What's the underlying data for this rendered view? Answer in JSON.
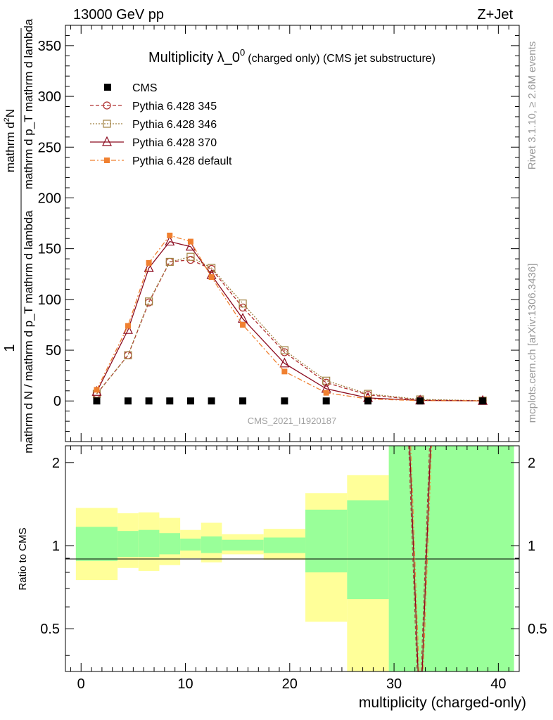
{
  "header": {
    "energy_label": "13000 GeV pp",
    "process_label": "Z+Jet"
  },
  "side_labels": {
    "rivet": "Rivet 3.1.10, ≥ 2.6M events",
    "mcplots": "mcplots.cern.ch [arXiv:1306.3436]"
  },
  "colors": {
    "cms": "#000000",
    "p345": "#b03030",
    "p346": "#a08040",
    "p370": "#8b0a1e",
    "pdefault": "#f08030",
    "band_inner": "#99ff99",
    "band_outer": "#ffff99"
  },
  "chart_data": [
    {
      "type": "line",
      "title": "Multiplicity λ_0",
      "title_superscript": "0",
      "title_suffix": "(charged only) (CMS jet substructure)",
      "ylabel_numerator": "1",
      "ylabel_main": "mathrm d N / mathrm d p_T mathrm d lambda",
      "ylabel_top": "mathrm d",
      "ylabel_top_sup": "2",
      "ylabel_top_tail": "N",
      "ylabel_denominator": "mathrm d p_T mathrm d lambda",
      "watermark": "CMS_2021_I1920187",
      "xlim": [
        -1.5,
        42
      ],
      "ylim": [
        -40,
        370
      ],
      "yticks": [
        0,
        50,
        100,
        150,
        200,
        250,
        300,
        350
      ],
      "x": [
        1.5,
        4.5,
        6.5,
        8.5,
        10.5,
        12.5,
        15.5,
        19.5,
        23.5,
        27.5,
        32.5,
        38.5
      ],
      "series": [
        {
          "name": "CMS",
          "marker": "filled-square",
          "values": [
            0,
            0,
            0,
            0,
            0,
            0,
            0,
            0,
            0,
            0,
            0,
            0
          ]
        },
        {
          "name": "Pythia 6.428 345",
          "marker": "open-circle",
          "dash": "5,3",
          "values": [
            7,
            45,
            97,
            137,
            139,
            130,
            92,
            48,
            18,
            6,
            1,
            0.2
          ]
        },
        {
          "name": "Pythia 6.428 346",
          "marker": "open-square",
          "dash": "2,2",
          "values": [
            7,
            45,
            98,
            137,
            142,
            131,
            96,
            50,
            20,
            7,
            1.5,
            0.3
          ]
        },
        {
          "name": "Pythia 6.428 370",
          "marker": "open-triangle",
          "dash": "",
          "values": [
            9,
            70,
            131,
            157,
            152,
            124,
            81,
            37,
            12,
            3,
            0.5,
            0.1
          ]
        },
        {
          "name": "Pythia 6.428 default",
          "marker": "filled-square-small",
          "dash": "7,3,2,3",
          "values": [
            11,
            74,
            136,
            163,
            157,
            122,
            75,
            29,
            8,
            2,
            0.3,
            0.05
          ]
        }
      ]
    },
    {
      "type": "area",
      "xlabel": "multiplicity (charged-only)",
      "ylabel": "Ratio to CMS",
      "xlim": [
        -1.5,
        42
      ],
      "ylim": [
        0.35,
        2.3
      ],
      "xticks": [
        0,
        10,
        20,
        30,
        40
      ],
      "yticks": [
        0.5,
        1,
        2
      ],
      "bins": [
        {
          "lo": -0.5,
          "hi": 3.5,
          "inner": [
            0.88,
            1.17
          ],
          "outer": [
            0.75,
            1.37
          ]
        },
        {
          "lo": 3.5,
          "hi": 5.5,
          "inner": [
            0.91,
            1.13
          ],
          "outer": [
            0.83,
            1.31
          ]
        },
        {
          "lo": 5.5,
          "hi": 7.5,
          "inner": [
            0.91,
            1.14
          ],
          "outer": [
            0.81,
            1.32
          ]
        },
        {
          "lo": 7.5,
          "hi": 9.5,
          "inner": [
            0.93,
            1.11
          ],
          "outer": [
            0.85,
            1.26
          ]
        },
        {
          "lo": 9.5,
          "hi": 11.5,
          "inner": [
            0.96,
            1.06
          ],
          "outer": [
            0.9,
            1.14
          ]
        },
        {
          "lo": 11.5,
          "hi": 13.5,
          "inner": [
            0.94,
            1.08
          ],
          "outer": [
            0.87,
            1.21
          ]
        },
        {
          "lo": 13.5,
          "hi": 17.5,
          "inner": [
            0.96,
            1.05
          ],
          "outer": [
            0.93,
            1.1
          ]
        },
        {
          "lo": 17.5,
          "hi": 21.5,
          "inner": [
            0.94,
            1.07
          ],
          "outer": [
            0.89,
            1.15
          ]
        },
        {
          "lo": 21.5,
          "hi": 25.5,
          "inner": [
            0.8,
            1.35
          ],
          "outer": [
            0.53,
            1.55
          ]
        },
        {
          "lo": 25.5,
          "hi": 29.5,
          "inner": [
            0.64,
            1.46
          ],
          "outer": [
            0.35,
            1.8
          ]
        },
        {
          "lo": 29.5,
          "hi": 41.5,
          "inner": [
            0.35,
            2.3
          ],
          "outer": [
            0.35,
            2.3
          ]
        }
      ],
      "spike_x": [
        31.5,
        32.3,
        32.7,
        33.5
      ],
      "spike_y": [
        2.3,
        0.35,
        0.35,
        2.3
      ]
    }
  ]
}
